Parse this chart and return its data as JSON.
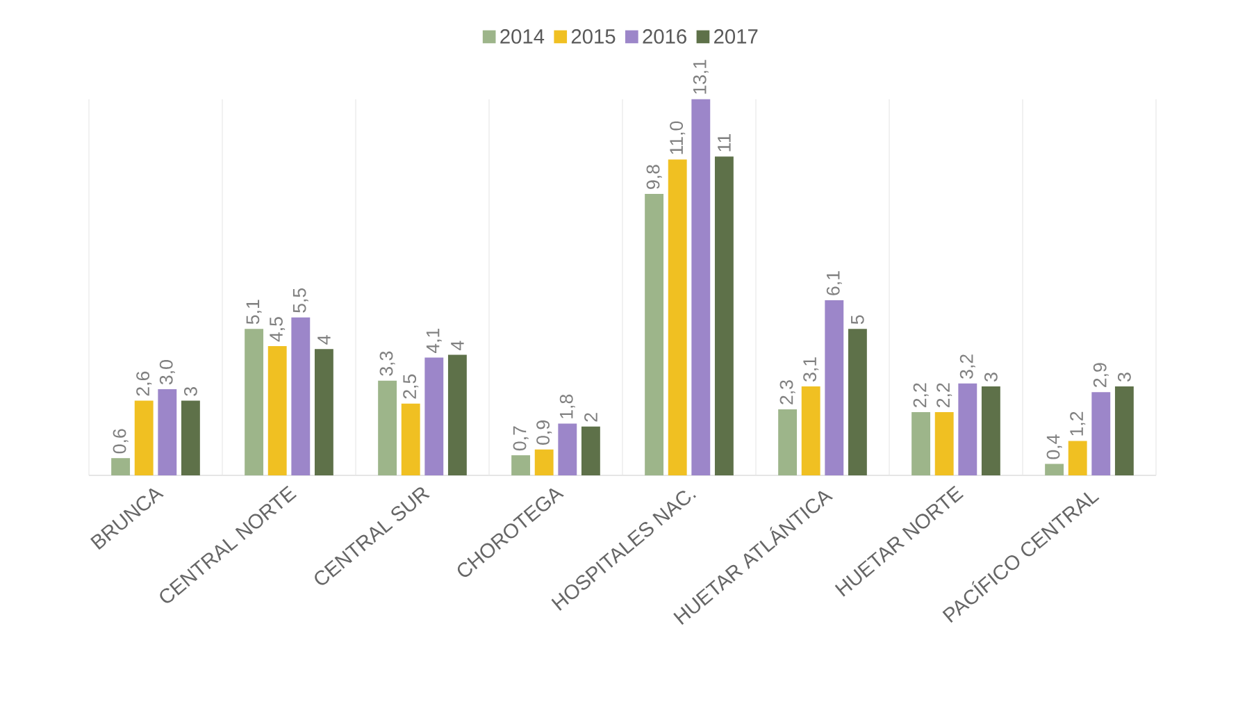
{
  "chart_data": {
    "type": "bar",
    "categories": [
      "BRUNCA",
      "CENTRAL NORTE",
      "CENTRAL SUR",
      "CHOROTEGA",
      "HOSPITALES NAC.",
      "HUETAR ATLÁNTICA",
      "HUETAR NORTE",
      "PACÍFICO CENTRAL"
    ],
    "series": [
      {
        "name": "2014",
        "color": "#9db58a",
        "values": [
          0.6,
          5.1,
          3.3,
          0.7,
          9.8,
          2.3,
          2.2,
          0.4
        ],
        "value_labels": [
          "0,6",
          "5,1",
          "3,3",
          "0,7",
          "9,8",
          "2,3",
          "2,2",
          "0,4"
        ]
      },
      {
        "name": "2015",
        "color": "#f0c022",
        "values": [
          2.6,
          4.5,
          2.5,
          0.9,
          11.0,
          3.1,
          2.2,
          1.2
        ],
        "value_labels": [
          "2,6",
          "4,5",
          "2,5",
          "0,9",
          "11,0",
          "3,1",
          "2,2",
          "1,2"
        ]
      },
      {
        "name": "2016",
        "color": "#9c86c9",
        "values": [
          3.0,
          5.5,
          4.1,
          1.8,
          13.1,
          6.1,
          3.2,
          2.9
        ],
        "value_labels": [
          "3,0",
          "5,5",
          "4,1",
          "1,8",
          "13,1",
          "6,1",
          "3,2",
          "2,9"
        ]
      },
      {
        "name": "2017",
        "color": "#5e7149",
        "values": [
          2.6,
          4.4,
          4.2,
          1.7,
          11.1,
          5.1,
          3.1,
          3.1
        ],
        "value_labels": [
          "3",
          "4",
          "4",
          "2",
          "11",
          "5",
          "3",
          "3"
        ]
      }
    ],
    "legend": "top"
  }
}
